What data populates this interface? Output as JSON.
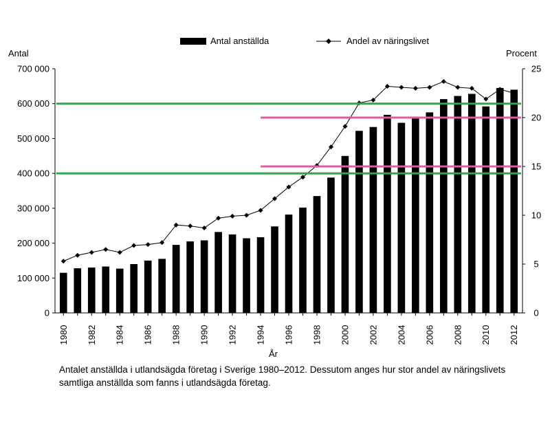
{
  "chart_data": {
    "type": "bar",
    "title": "",
    "xlabel": "År",
    "ylabel_left": "Antal",
    "ylabel_right": "Procent",
    "x": [
      1980,
      1981,
      1982,
      1983,
      1984,
      1985,
      1986,
      1987,
      1988,
      1989,
      1990,
      1991,
      1992,
      1993,
      1994,
      1995,
      1996,
      1997,
      1998,
      1999,
      2000,
      2001,
      2002,
      2003,
      2004,
      2005,
      2006,
      2007,
      2008,
      2009,
      2010,
      2011,
      2012
    ],
    "x_tick_labels": [
      "1980",
      "1982",
      "1984",
      "1986",
      "1988",
      "1990",
      "1992",
      "1994",
      "1996",
      "1998",
      "2000",
      "2002",
      "2004",
      "2006",
      "2008",
      "2010",
      "2012"
    ],
    "left_axis": {
      "ylim": [
        0,
        700000
      ],
      "ticks": [
        0,
        100000,
        200000,
        300000,
        400000,
        500000,
        600000,
        700000
      ],
      "tick_labels": [
        "0",
        "100 000",
        "200 000",
        "300 000",
        "400 000",
        "500 000",
        "600 000",
        "700 000"
      ]
    },
    "right_axis": {
      "ylim": [
        0,
        25
      ],
      "ticks": [
        0,
        5,
        10,
        15,
        20,
        25
      ],
      "tick_labels": [
        "0",
        "5",
        "10",
        "15",
        "20",
        "25"
      ]
    },
    "grid": false,
    "legend_position": "top",
    "series": [
      {
        "name": "Antal anställda",
        "type": "bar",
        "axis": "left",
        "color": "#000000",
        "values": [
          115000,
          128000,
          130000,
          133000,
          127000,
          140000,
          150000,
          155000,
          195000,
          205000,
          208000,
          232000,
          225000,
          214000,
          217000,
          248000,
          282000,
          302000,
          335000,
          388000,
          450000,
          522000,
          533000,
          568000,
          545000,
          560000,
          575000,
          613000,
          622000,
          628000,
          592000,
          645000,
          640000
        ]
      },
      {
        "name": "Andel av näringslivet",
        "type": "line",
        "axis": "right",
        "color": "#000000",
        "marker": "diamond",
        "values": [
          5.3,
          5.9,
          6.2,
          6.5,
          6.2,
          6.9,
          7.0,
          7.2,
          9.0,
          8.9,
          8.7,
          9.7,
          9.9,
          10.0,
          10.5,
          11.7,
          12.9,
          13.9,
          15.1,
          17.0,
          19.1,
          21.5,
          21.8,
          23.2,
          23.1,
          23.0,
          23.1,
          23.7,
          23.1,
          23.0,
          21.9,
          22.9,
          22.5
        ]
      }
    ],
    "reference_lines": [
      {
        "axis": "left",
        "value": 600000,
        "color": "#2aa84a",
        "x_from": 1979.5,
        "x_to": 2012.5
      },
      {
        "axis": "left",
        "value": 400000,
        "color": "#2aa84a",
        "x_from": 1979.5,
        "x_to": 2012.5
      },
      {
        "axis": "right",
        "value": 20,
        "color": "#e05aa8",
        "x_from": 1994,
        "x_to": 2012.5
      },
      {
        "axis": "right",
        "value": 15,
        "color": "#e05aa8",
        "x_from": 1994,
        "x_to": 2012.5
      }
    ]
  },
  "caption": "Antalet anställda i utlandsägda företag i Sverige 1980–2012. Dessutom anges hur stor andel av näringslivets samtliga anställda som fanns i utlandsägda företag."
}
